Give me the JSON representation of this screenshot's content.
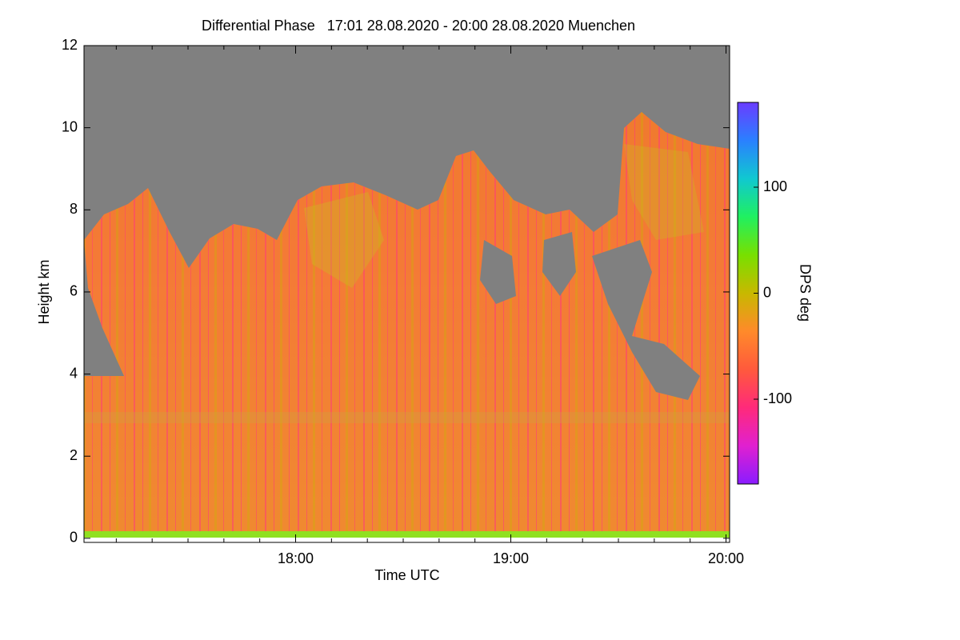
{
  "chart_data": {
    "type": "heatmap",
    "title": "Differential Phase   17:01 28.08.2020 - 20:00 28.08.2020 Muenchen",
    "xlabel": "Time UTC",
    "ylabel": "Height km",
    "xlim": [
      1021,
      1201
    ],
    "xticks": [
      {
        "value": 1080,
        "label": "18:00"
      },
      {
        "value": 1140,
        "label": "19:00"
      },
      {
        "value": 1200,
        "label": "20:00"
      }
    ],
    "xminor_ticks": [
      1030,
      1040,
      1050,
      1060,
      1070,
      1090,
      1100,
      1110,
      1120,
      1130,
      1150,
      1160,
      1170,
      1180,
      1190
    ],
    "ylim": [
      -0.1,
      12
    ],
    "yticks": [
      0,
      2,
      4,
      6,
      8,
      10,
      12
    ],
    "colorbar": {
      "label": "DPS deg",
      "lim": [
        -180,
        180
      ],
      "ticks": [
        100,
        0,
        -100
      ],
      "colors": [
        "#8a1cff",
        "#e020d0",
        "#ff2a7a",
        "#ff5a3c",
        "#ff8a2a",
        "#c8b800",
        "#78e000",
        "#20f060",
        "#10c8d0",
        "#2a80ff",
        "#6a3cff"
      ]
    }
  }
}
